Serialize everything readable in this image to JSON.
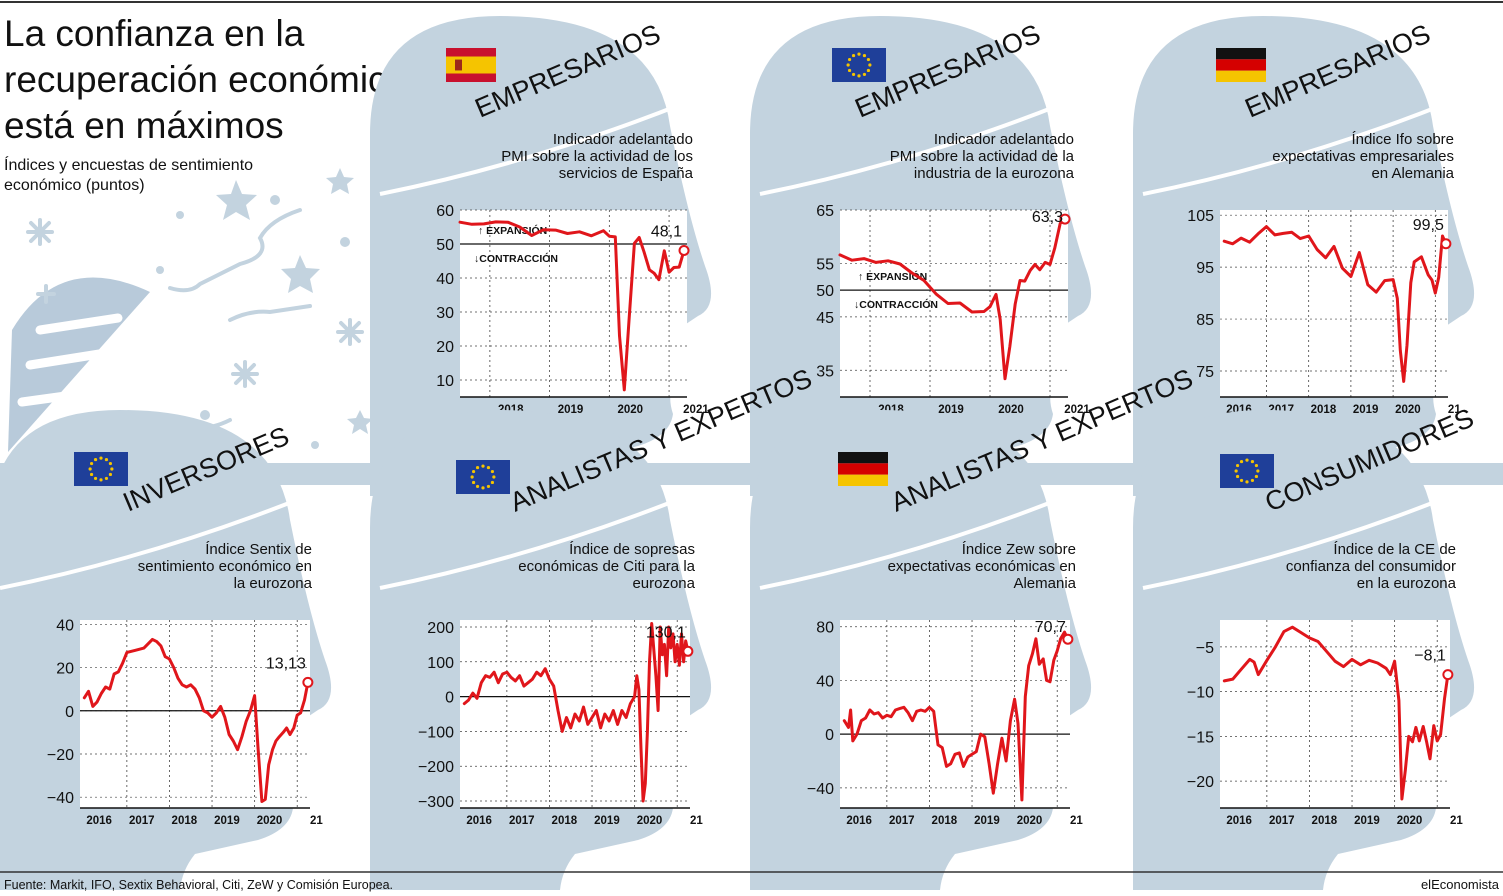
{
  "header": {
    "title_lines": [
      "La confianza en la",
      "recuperación económica",
      "está en máximos"
    ],
    "subtitle_lines": [
      "Índices y encuestas de sentimiento",
      "económico (puntos)"
    ]
  },
  "footer": {
    "source": "Fuente: Markit, IFO, Sextix Behavioral, Citi, ZeW y Comisión Europea.",
    "brand": "elEconomista"
  },
  "colors": {
    "line": "#e0161b",
    "head": "#c3d3df",
    "band": "#c3d3df",
    "eu_flag": "#1f3f99",
    "eu_stars": "#f5c400"
  },
  "panels": [
    {
      "category": "EMPRESARIOS",
      "flag": "spain-flag",
      "desc_lines": [
        "Indicador adelantado",
        "PMI sobre la actividad de los",
        "servicios de España"
      ],
      "callout": "48,1",
      "yticks": [
        "60",
        "50",
        "40",
        "30",
        "20",
        "10"
      ],
      "xticks": [
        "2018",
        "2019",
        "2020",
        "2021"
      ],
      "ref_labels": [
        "EXPANSIÓN",
        "CONTRACCIÓN"
      ]
    },
    {
      "category": "EMPRESARIOS",
      "flag": "eu-flag",
      "desc_lines": [
        "Indicador adelantado",
        "PMI sobre la actividad de la",
        "industria de la eurozona"
      ],
      "callout": "63,3",
      "yticks": [
        "65",
        "55",
        "50",
        "45",
        "35"
      ],
      "xticks": [
        "2018",
        "2019",
        "2020",
        "2021"
      ],
      "ref_labels": [
        "EXPANSIÓN",
        "CONTRACCIÓN"
      ]
    },
    {
      "category": "EMPRESARIOS",
      "flag": "germany-flag",
      "desc_lines": [
        "Índice Ifo sobre",
        "expectativas empresariales",
        "en Alemania"
      ],
      "callout": "99,5",
      "yticks": [
        "105",
        "95",
        "85",
        "75"
      ],
      "xticks": [
        "2016",
        "2017",
        "2018",
        "2019",
        "2020",
        "21"
      ],
      "ref_labels": []
    },
    {
      "category": "INVERSORES",
      "flag": "eu-flag",
      "desc_lines": [
        "Índice Sentix de",
        "sentimiento económico en",
        "la eurozona"
      ],
      "callout": "13,13",
      "yticks": [
        "40",
        "20",
        "0",
        "−20",
        "−40"
      ],
      "xticks": [
        "2016",
        "2017",
        "2018",
        "2019",
        "2020",
        "21"
      ],
      "ref_labels": []
    },
    {
      "category": "ANALISTAS Y EXPERTOS",
      "flag": "eu-flag",
      "desc_lines": [
        "Índice de sopresas",
        "económicas de Citi para la",
        "eurozona"
      ],
      "callout": "130,1",
      "yticks": [
        "200",
        "100",
        "0",
        "−100",
        "−200",
        "−300"
      ],
      "xticks": [
        "2016",
        "2017",
        "2018",
        "2019",
        "2020",
        "21"
      ],
      "ref_labels": []
    },
    {
      "category": "ANALISTAS Y EXPERTOS",
      "flag": "germany-flag",
      "desc_lines": [
        "Índice Zew sobre",
        "expectativas económicas en",
        "Alemania"
      ],
      "callout": "70,7",
      "yticks": [
        "80",
        "40",
        "0",
        "−40"
      ],
      "xticks": [
        "2016",
        "2017",
        "2018",
        "2019",
        "2020",
        "21"
      ],
      "ref_labels": []
    },
    {
      "category": "CONSUMIDORES",
      "flag": "eu-flag",
      "desc_lines": [
        "Índice de la CE de",
        "confianza del consumidor",
        "en la eurozona"
      ],
      "callout": "−8,1",
      "yticks": [
        "−5",
        "−10",
        "−15",
        "−20"
      ],
      "xticks": [
        "2016",
        "2017",
        "2018",
        "2019",
        "2020",
        "21"
      ],
      "ref_labels": []
    }
  ],
  "chart_data": [
    {
      "type": "line",
      "title": "Indicador adelantado PMI sobre la actividad de los servicios de España",
      "ylim": [
        5,
        60
      ],
      "reference_line": 50,
      "last_value": 48.1,
      "x": [
        2017.5,
        2017.7,
        2017.9,
        2018.1,
        2018.3,
        2018.5,
        2018.7,
        2018.9,
        2019.1,
        2019.3,
        2019.5,
        2019.7,
        2019.9,
        2020.0,
        2020.1,
        2020.17,
        2020.25,
        2020.33,
        2020.42,
        2020.5,
        2020.58,
        2020.67,
        2020.75,
        2020.83,
        2020.92,
        2021.0,
        2021.08,
        2021.17,
        2021.25
      ],
      "values": [
        56.4,
        55.8,
        55.9,
        56.5,
        56.4,
        55.0,
        52.5,
        54.2,
        54.1,
        53.1,
        53.6,
        52.4,
        53.9,
        52.3,
        52.1,
        23.0,
        7.1,
        27.9,
        50.2,
        51.9,
        47.7,
        42.4,
        41.4,
        39.5,
        48.0,
        41.7,
        43.1,
        43.2,
        48.1
      ]
    },
    {
      "type": "line",
      "title": "Indicador adelantado PMI sobre la actividad de la industria de la eurozona",
      "ylim": [
        30,
        65
      ],
      "reference_line": 50,
      "last_value": 63.3,
      "x": [
        2017.5,
        2017.7,
        2017.9,
        2018.1,
        2018.3,
        2018.5,
        2018.7,
        2018.9,
        2019.1,
        2019.3,
        2019.5,
        2019.7,
        2019.9,
        2020.0,
        2020.1,
        2020.17,
        2020.25,
        2020.33,
        2020.42,
        2020.5,
        2020.58,
        2020.67,
        2020.75,
        2020.83,
        2020.92,
        2021.0,
        2021.08,
        2021.17,
        2021.25
      ],
      "values": [
        56.6,
        55.6,
        55.9,
        55.2,
        55.5,
        54.9,
        53.2,
        51.8,
        49.3,
        47.5,
        47.6,
        45.9,
        46.0,
        46.9,
        49.2,
        44.5,
        33.4,
        39.4,
        47.4,
        51.8,
        51.7,
        53.7,
        54.8,
        53.8,
        55.2,
        54.8,
        57.9,
        62.5,
        63.3
      ]
    },
    {
      "type": "line",
      "title": "Índice Ifo sobre expectativas empresariales en Alemania",
      "ylim": [
        70,
        106
      ],
      "last_value": 99.5,
      "x": [
        2016.0,
        2016.2,
        2016.4,
        2016.6,
        2016.8,
        2017.0,
        2017.2,
        2017.4,
        2017.6,
        2017.8,
        2018.0,
        2018.2,
        2018.4,
        2018.6,
        2018.8,
        2019.0,
        2019.2,
        2019.4,
        2019.6,
        2019.8,
        2020.0,
        2020.1,
        2020.17,
        2020.25,
        2020.33,
        2020.42,
        2020.5,
        2020.67,
        2020.83,
        2020.92,
        2021.0,
        2021.08,
        2021.17,
        2021.25
      ],
      "values": [
        100,
        99.5,
        100.6,
        99.8,
        101.4,
        102.8,
        101.2,
        101.5,
        101.7,
        100.5,
        101.0,
        98.4,
        96.8,
        99.0,
        94.8,
        93.2,
        97.8,
        91.6,
        90.2,
        92.4,
        92.6,
        89.0,
        79.0,
        73.0,
        80.0,
        92.0,
        96.0,
        97.0,
        93.5,
        92.5,
        90.0,
        93.0,
        101.0,
        99.5
      ]
    },
    {
      "type": "line",
      "title": "Índice Sentix de sentimiento económico en la eurozona",
      "ylim": [
        -45,
        42
      ],
      "reference_line": 0,
      "last_value": 13.13,
      "x": [
        2016.0,
        2016.1,
        2016.2,
        2016.3,
        2016.4,
        2016.5,
        2016.6,
        2016.7,
        2016.8,
        2016.9,
        2017.0,
        2017.2,
        2017.4,
        2017.5,
        2017.6,
        2017.7,
        2017.8,
        2017.9,
        2018.0,
        2018.1,
        2018.2,
        2018.3,
        2018.4,
        2018.5,
        2018.6,
        2018.7,
        2018.8,
        2018.9,
        2019.0,
        2019.1,
        2019.2,
        2019.3,
        2019.4,
        2019.5,
        2019.6,
        2019.7,
        2019.8,
        2019.9,
        2020.0,
        2020.08,
        2020.17,
        2020.25,
        2020.33,
        2020.42,
        2020.5,
        2020.58,
        2020.67,
        2020.75,
        2020.83,
        2020.92,
        2021.0,
        2021.08,
        2021.17,
        2021.25
      ],
      "values": [
        6,
        9,
        2,
        4,
        8,
        11,
        10,
        17,
        18,
        22,
        27,
        28,
        29,
        31,
        33,
        32,
        30,
        25,
        24,
        20,
        15,
        12,
        11,
        12,
        10,
        6,
        0,
        -1,
        -3,
        -1,
        2,
        -3,
        -11,
        -14,
        -18,
        -12,
        -5,
        0,
        7,
        -17,
        -42,
        -41,
        -25,
        -18,
        -14,
        -12,
        -10,
        -8,
        -11,
        -8,
        -2,
        -1,
        5,
        13.13
      ]
    },
    {
      "type": "line",
      "title": "Índice de sopresas económicas de Citi para la eurozona",
      "ylim": [
        -320,
        220
      ],
      "reference_line": 0,
      "last_value": 130.1,
      "x": [
        2016.0,
        2016.1,
        2016.2,
        2016.3,
        2016.4,
        2016.5,
        2016.6,
        2016.7,
        2016.8,
        2016.9,
        2017.0,
        2017.1,
        2017.2,
        2017.3,
        2017.4,
        2017.5,
        2017.6,
        2017.7,
        2017.8,
        2017.9,
        2018.0,
        2018.1,
        2018.2,
        2018.3,
        2018.4,
        2018.5,
        2018.6,
        2018.7,
        2018.8,
        2018.9,
        2019.0,
        2019.1,
        2019.2,
        2019.3,
        2019.4,
        2019.5,
        2019.6,
        2019.7,
        2019.8,
        2019.9,
        2020.0,
        2020.05,
        2020.1,
        2020.15,
        2020.2,
        2020.25,
        2020.3,
        2020.35,
        2020.4,
        2020.5,
        2020.55,
        2020.6,
        2020.65,
        2020.7,
        2020.75,
        2020.8,
        2020.85,
        2020.9,
        2020.95,
        2021.0,
        2021.05,
        2021.1,
        2021.15,
        2021.2,
        2021.25
      ],
      "values": [
        -20,
        -10,
        10,
        -5,
        40,
        60,
        55,
        70,
        40,
        65,
        70,
        55,
        45,
        60,
        30,
        40,
        50,
        70,
        60,
        80,
        50,
        30,
        -40,
        -100,
        -60,
        -90,
        -50,
        -70,
        -30,
        -80,
        -60,
        -40,
        -90,
        -50,
        -70,
        -40,
        -80,
        -40,
        -60,
        -20,
        0,
        60,
        20,
        -150,
        -300,
        -250,
        -100,
        100,
        210,
        60,
        -40,
        200,
        120,
        150,
        60,
        200,
        140,
        180,
        100,
        150,
        90,
        180,
        100,
        160,
        130.1
      ]
    },
    {
      "type": "line",
      "title": "Índice Zew sobre expectativas económicas en Alemania",
      "ylim": [
        -55,
        85
      ],
      "reference_line": 0,
      "last_value": 70.7,
      "x": [
        2016.0,
        2016.1,
        2016.15,
        2016.2,
        2016.3,
        2016.4,
        2016.5,
        2016.6,
        2016.7,
        2016.8,
        2016.9,
        2017.0,
        2017.1,
        2017.2,
        2017.3,
        2017.4,
        2017.5,
        2017.6,
        2017.7,
        2017.8,
        2017.9,
        2018.0,
        2018.1,
        2018.2,
        2018.3,
        2018.4,
        2018.5,
        2018.6,
        2018.7,
        2018.8,
        2018.9,
        2019.0,
        2019.1,
        2019.2,
        2019.3,
        2019.4,
        2019.5,
        2019.6,
        2019.7,
        2019.8,
        2019.9,
        2020.0,
        2020.08,
        2020.17,
        2020.25,
        2020.33,
        2020.42,
        2020.5,
        2020.58,
        2020.67,
        2020.75,
        2020.83,
        2020.92,
        2021.0,
        2021.08,
        2021.17,
        2021.25
      ],
      "values": [
        10,
        5,
        18,
        -5,
        0,
        10,
        12,
        18,
        15,
        16,
        12,
        14,
        13,
        18,
        19,
        20,
        16,
        10,
        17,
        18,
        17,
        20,
        17,
        -8,
        -10,
        -24,
        -22,
        -15,
        -14,
        -24,
        -17,
        -15,
        -13,
        0,
        -2,
        -22,
        -44,
        -22,
        -3,
        -20,
        10,
        26,
        8,
        -49,
        28,
        51,
        60,
        71,
        52,
        56,
        40,
        39,
        55,
        62,
        71,
        76,
        70.7
      ]
    },
    {
      "type": "line",
      "title": "Índice de la CE de confianza del consumidor en la eurozona",
      "ylim": [
        -23,
        -2
      ],
      "last_value": -8.1,
      "x": [
        2016.0,
        2016.2,
        2016.4,
        2016.6,
        2016.7,
        2016.8,
        2017.0,
        2017.2,
        2017.4,
        2017.6,
        2017.8,
        2018.0,
        2018.2,
        2018.4,
        2018.6,
        2018.8,
        2019.0,
        2019.2,
        2019.4,
        2019.6,
        2019.8,
        2019.9,
        2020.0,
        2020.1,
        2020.17,
        2020.25,
        2020.33,
        2020.42,
        2020.5,
        2020.58,
        2020.67,
        2020.75,
        2020.83,
        2020.92,
        2021.0,
        2021.08,
        2021.17,
        2021.25
      ],
      "values": [
        -8.8,
        -8.6,
        -7.5,
        -6.4,
        -6.7,
        -8.1,
        -6.5,
        -5.0,
        -3.3,
        -2.8,
        -3.4,
        -4.0,
        -4.4,
        -5.5,
        -6.6,
        -7.2,
        -6.4,
        -7.0,
        -6.5,
        -6.8,
        -7.4,
        -8.1,
        -6.6,
        -11,
        -22,
        -18.8,
        -15.0,
        -15.6,
        -14.0,
        -15.5,
        -13.9,
        -15.6,
        -17.5,
        -13.8,
        -15.5,
        -14.8,
        -10.8,
        -8.1
      ]
    }
  ]
}
